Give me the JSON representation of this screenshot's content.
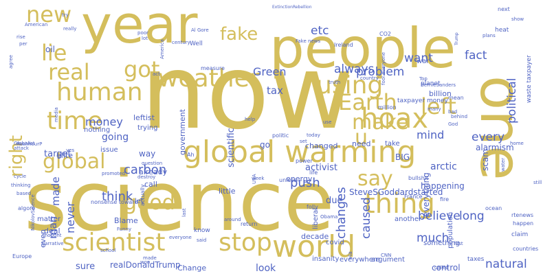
{
  "colors": {
    "gold": "#d4be5c",
    "blue": "#4f63c3",
    "background": "#ffffff"
  },
  "words": [
    {
      "text": "now",
      "color": "gold"
    },
    {
      "text": "science",
      "color": "gold"
    },
    {
      "text": "people",
      "color": "gold"
    },
    {
      "text": "year",
      "color": "gold"
    },
    {
      "text": "one",
      "color": "gold"
    },
    {
      "text": "global warming",
      "color": "gold"
    },
    {
      "text": "world",
      "color": "gold"
    },
    {
      "text": "hoax",
      "color": "gold"
    },
    {
      "text": "thing",
      "color": "gold"
    },
    {
      "text": "scientist",
      "color": "gold"
    },
    {
      "text": "stop",
      "color": "gold"
    },
    {
      "text": "time",
      "color": "gold"
    },
    {
      "text": "human",
      "color": "gold"
    },
    {
      "text": "weather",
      "color": "gold"
    },
    {
      "text": "real",
      "color": "gold"
    },
    {
      "text": "got",
      "color": "gold"
    },
    {
      "text": "lie",
      "color": "gold"
    },
    {
      "text": "new",
      "color": "gold"
    },
    {
      "text": "using",
      "color": "gold"
    },
    {
      "text": "Earth",
      "color": "gold"
    },
    {
      "text": "left",
      "color": "gold"
    },
    {
      "text": "make",
      "color": "gold"
    },
    {
      "text": "global",
      "color": "gold"
    },
    {
      "text": "right",
      "color": "gold"
    },
    {
      "text": "good",
      "color": "gold"
    },
    {
      "text": "say",
      "color": "gold"
    },
    {
      "text": "u",
      "color": "gold"
    },
    {
      "text": "fake",
      "color": "gold"
    },
    {
      "text": "etc",
      "color": "blue"
    },
    {
      "text": "Green",
      "color": "blue"
    },
    {
      "text": "problem",
      "color": "blue"
    },
    {
      "text": "want",
      "color": "blue"
    },
    {
      "text": "fact",
      "color": "blue"
    },
    {
      "text": "political",
      "color": "blue"
    },
    {
      "text": "tax",
      "color": "blue"
    },
    {
      "text": "always",
      "color": "blue"
    },
    {
      "text": "every",
      "color": "blue"
    },
    {
      "text": "carbon",
      "color": "blue"
    },
    {
      "text": "money",
      "color": "blue"
    },
    {
      "text": "think",
      "color": "blue"
    },
    {
      "text": "believe",
      "color": "blue"
    },
    {
      "text": "changes",
      "color": "blue"
    },
    {
      "text": "caused",
      "color": "blue"
    },
    {
      "text": "push",
      "color": "blue"
    },
    {
      "text": "natural",
      "color": "blue"
    },
    {
      "text": "long",
      "color": "blue"
    },
    {
      "text": "much",
      "color": "blue"
    },
    {
      "text": "never",
      "color": "blue"
    },
    {
      "text": "made",
      "color": "blue"
    },
    {
      "text": "man",
      "color": "blue"
    },
    {
      "text": "mind",
      "color": "blue"
    },
    {
      "text": "going",
      "color": "blue"
    },
    {
      "text": "target",
      "color": "blue"
    },
    {
      "text": "oil",
      "color": "blue"
    },
    {
      "text": "scientific",
      "color": "blue"
    },
    {
      "text": "activist",
      "color": "blue"
    },
    {
      "text": "arctic",
      "color": "blue"
    },
    {
      "text": "scam",
      "color": "blue"
    },
    {
      "text": "alarmism",
      "color": "blue"
    },
    {
      "text": "sure",
      "color": "blue"
    },
    {
      "text": "look",
      "color": "blue"
    },
    {
      "text": "realDonaldTrump",
      "color": "blue"
    },
    {
      "text": "Change",
      "color": "blue"
    },
    {
      "text": "control",
      "color": "blue"
    },
    {
      "text": "everything",
      "color": "blue"
    },
    {
      "text": "even",
      "color": "blue"
    },
    {
      "text": "deal",
      "color": "blue"
    },
    {
      "text": "matter",
      "color": "blue"
    },
    {
      "text": "already",
      "color": "blue"
    },
    {
      "text": "call",
      "color": "blue"
    },
    {
      "text": "let",
      "color": "blue"
    },
    {
      "text": "little",
      "color": "blue"
    },
    {
      "text": "due",
      "color": "blue"
    },
    {
      "text": "need",
      "color": "blue"
    },
    {
      "text": "SteveSGoddardstarted",
      "color": "blue"
    },
    {
      "text": "happening",
      "color": "blue"
    },
    {
      "text": "take",
      "color": "blue"
    },
    {
      "text": "another",
      "color": "blue"
    },
    {
      "text": "government",
      "color": "blue"
    },
    {
      "text": "way",
      "color": "blue"
    },
    {
      "text": "elite",
      "color": "blue"
    },
    {
      "text": "issue",
      "color": "blue"
    },
    {
      "text": "BIG",
      "color": "blue"
    },
    {
      "text": "go",
      "color": "blue"
    },
    {
      "text": "leftist",
      "color": "blue"
    },
    {
      "text": "trying",
      "color": "blue"
    },
    {
      "text": "nothing",
      "color": "blue"
    },
    {
      "text": "changed",
      "color": "blue"
    },
    {
      "text": "billion",
      "color": "blue"
    },
    {
      "text": "taxpayer money",
      "color": "blue"
    },
    {
      "text": "energy",
      "color": "blue"
    },
    {
      "text": "decade",
      "color": "blue"
    },
    {
      "text": "population",
      "color": "blue"
    },
    {
      "text": "something",
      "color": "blue"
    },
    {
      "text": "insanity",
      "color": "blue"
    },
    {
      "text": "everywhere",
      "color": "blue"
    },
    {
      "text": "argument",
      "color": "blue"
    },
    {
      "text": "taxes",
      "color": "blue"
    },
    {
      "text": "Blame",
      "color": "blue"
    },
    {
      "text": "liberal",
      "color": "blue"
    },
    {
      "text": "covid",
      "color": "blue"
    },
    {
      "text": "nonsense toward",
      "color": "blue"
    },
    {
      "text": "Europe",
      "color": "blue"
    },
    {
      "text": "Well",
      "color": "blue"
    },
    {
      "text": "war",
      "color": "blue"
    },
    {
      "text": "measure",
      "color": "blue"
    },
    {
      "text": "Ireland",
      "color": "blue"
    },
    {
      "text": "planet",
      "color": "blue"
    },
    {
      "text": "waste taxpayer",
      "color": "blue"
    },
    {
      "text": "heat",
      "color": "blue"
    },
    {
      "text": "next",
      "color": "blue"
    },
    {
      "text": "Al Gore",
      "color": "blue"
    },
    {
      "text": "Fake news",
      "color": "blue"
    },
    {
      "text": "CO2",
      "color": "blue"
    },
    {
      "text": "American",
      "color": "blue"
    },
    {
      "text": "century",
      "color": "blue"
    },
    {
      "text": "really",
      "color": "blue"
    },
    {
      "text": "poor",
      "color": "blue"
    },
    {
      "text": "lot",
      "color": "blue"
    },
    {
      "text": "America",
      "color": "blue"
    },
    {
      "text": "per",
      "color": "blue"
    },
    {
      "text": "rise",
      "color": "blue"
    },
    {
      "text": "agree",
      "color": "blue"
    },
    {
      "text": "try",
      "color": "blue"
    },
    {
      "text": "ExtinctionRebellion",
      "color": "blue"
    },
    {
      "text": "act",
      "color": "blue"
    },
    {
      "text": "truth",
      "color": "blue"
    },
    {
      "text": "country",
      "color": "blue"
    },
    {
      "text": "fool everyone",
      "color": "blue"
    },
    {
      "text": "mean",
      "color": "blue"
    },
    {
      "text": "behind",
      "color": "blue"
    },
    {
      "text": "Top",
      "color": "blue"
    },
    {
      "text": "BernieSanders",
      "color": "blue"
    },
    {
      "text": "God",
      "color": "blue"
    },
    {
      "text": "bad",
      "color": "blue"
    },
    {
      "text": "many",
      "color": "blue"
    },
    {
      "text": "million",
      "color": "blue"
    },
    {
      "text": "plans",
      "color": "blue"
    },
    {
      "text": "show",
      "color": "blue"
    },
    {
      "text": "Trump",
      "color": "blue"
    },
    {
      "text": "media",
      "color": "blue"
    },
    {
      "text": "attack",
      "color": "blue"
    },
    {
      "text": "Globalist",
      "color": "blue"
    },
    {
      "text": "RushhourP",
      "color": "blue"
    },
    {
      "text": "cycle",
      "color": "blue"
    },
    {
      "text": "thinking",
      "color": "blue"
    },
    {
      "text": "based",
      "color": "blue"
    },
    {
      "text": "algore",
      "color": "blue"
    },
    {
      "text": "question",
      "color": "blue"
    },
    {
      "text": "yes",
      "color": "blue"
    },
    {
      "text": "Ah",
      "color": "blue"
    },
    {
      "text": "USA",
      "color": "blue"
    },
    {
      "text": "week",
      "color": "blue"
    },
    {
      "text": "unless",
      "color": "blue"
    },
    {
      "text": "power",
      "color": "blue"
    },
    {
      "text": "bullshit",
      "color": "blue"
    },
    {
      "text": "home",
      "color": "blue"
    },
    {
      "text": "life",
      "color": "blue"
    },
    {
      "text": "politic",
      "color": "blue"
    },
    {
      "text": "today",
      "color": "blue"
    },
    {
      "text": "use",
      "color": "blue"
    },
    {
      "text": "fire",
      "color": "blue"
    },
    {
      "text": "water",
      "color": "blue"
    },
    {
      "text": "ocean",
      "color": "blue"
    },
    {
      "text": "still",
      "color": "blue"
    },
    {
      "text": "rtenews",
      "color": "blue"
    },
    {
      "text": "happen",
      "color": "blue"
    },
    {
      "text": "countries",
      "color": "blue"
    },
    {
      "text": "claim",
      "color": "blue"
    },
    {
      "text": "first",
      "color": "blue"
    },
    {
      "text": "France",
      "color": "blue"
    },
    {
      "text": "Obama",
      "color": "blue"
    },
    {
      "text": "return",
      "color": "blue"
    },
    {
      "text": "CNN",
      "color": "blue"
    },
    {
      "text": "folly",
      "color": "blue"
    },
    {
      "text": "called",
      "color": "blue"
    },
    {
      "text": "via",
      "color": "blue"
    },
    {
      "text": "know",
      "color": "blue"
    },
    {
      "text": "last",
      "color": "blue"
    },
    {
      "text": "said",
      "color": "blue"
    },
    {
      "text": "everyone",
      "color": "blue"
    },
    {
      "text": "school",
      "color": "blue"
    },
    {
      "text": "won",
      "color": "blue"
    },
    {
      "text": "Funny",
      "color": "blue"
    },
    {
      "text": "thought",
      "color": "blue"
    },
    {
      "text": "Narrative",
      "color": "blue"
    },
    {
      "text": "NikolovScience",
      "color": "blue"
    },
    {
      "text": "promoted",
      "color": "blue"
    },
    {
      "text": "destroy",
      "color": "blue"
    },
    {
      "text": "actually",
      "color": "blue"
    },
    {
      "text": "help",
      "color": "blue"
    },
    {
      "text": "set",
      "color": "blue"
    },
    {
      "text": "around",
      "color": "blue"
    },
    {
      "text": "made",
      "color": "blue"
    }
  ]
}
